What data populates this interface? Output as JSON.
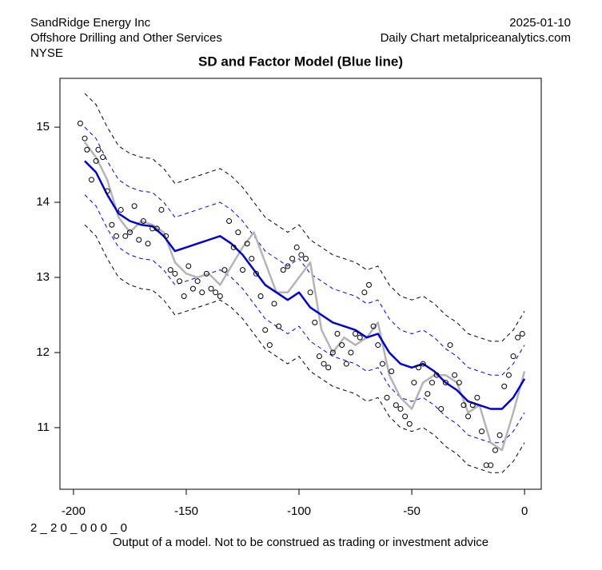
{
  "header": {
    "company": "SandRidge Energy Inc",
    "industry": "Offshore Drilling and Other Services",
    "exchange": "NYSE",
    "date": "2025-01-10",
    "source": "Daily Chart metalpriceanalytics.com"
  },
  "chart_data": {
    "type": "line",
    "title": "SD and Factor Model (Blue line)",
    "xlim": [
      -206,
      7.4
    ],
    "ylim": [
      10.18,
      15.65
    ],
    "xticks": [
      -200,
      -150,
      -100,
      -50,
      0
    ],
    "yticks": [
      11,
      12,
      13,
      14,
      15
    ],
    "series": [
      {
        "style": "dashed",
        "color": "#000000",
        "x": [
          -195,
          -190,
          -185,
          -180,
          -175,
          -170,
          -165,
          -160,
          -155,
          -150,
          -145,
          -140,
          -135,
          -130,
          -125,
          -120,
          -115,
          -110,
          -105,
          -100,
          -95,
          -90,
          -85,
          -80,
          -75,
          -70,
          -65,
          -60,
          -55,
          -50,
          -45,
          -40,
          -35,
          -30,
          -25,
          -20,
          -15,
          -10,
          -5,
          0
        ],
        "values": [
          15.45,
          15.3,
          15.0,
          14.75,
          14.65,
          14.6,
          14.58,
          14.45,
          14.25,
          14.3,
          14.35,
          14.4,
          14.45,
          14.35,
          14.2,
          14.0,
          13.8,
          13.7,
          13.6,
          13.7,
          13.5,
          13.4,
          13.3,
          13.25,
          13.2,
          13.1,
          13.15,
          12.9,
          12.75,
          12.7,
          12.75,
          12.65,
          12.5,
          12.4,
          12.25,
          12.2,
          12.15,
          12.15,
          12.3,
          12.55
        ]
      },
      {
        "style": "dashed",
        "color": "#000000",
        "x": [
          -195,
          -190,
          -185,
          -180,
          -175,
          -170,
          -165,
          -160,
          -155,
          -150,
          -145,
          -140,
          -135,
          -130,
          -125,
          -120,
          -115,
          -110,
          -105,
          -100,
          -95,
          -90,
          -85,
          -80,
          -75,
          -70,
          -65,
          -60,
          -55,
          -50,
          -45,
          -40,
          -35,
          -30,
          -25,
          -20,
          -15,
          -10,
          -5,
          0
        ],
        "values": [
          13.7,
          13.55,
          13.25,
          13.0,
          12.9,
          12.85,
          12.83,
          12.7,
          12.5,
          12.55,
          12.6,
          12.65,
          12.7,
          12.6,
          12.45,
          12.25,
          12.05,
          11.95,
          11.85,
          11.95,
          11.75,
          11.65,
          11.55,
          11.5,
          11.45,
          11.35,
          11.4,
          11.15,
          11.0,
          10.95,
          11.0,
          10.9,
          10.75,
          10.65,
          10.5,
          10.45,
          10.4,
          10.4,
          10.55,
          10.8
        ]
      },
      {
        "style": "dashed",
        "color": "#0000ff",
        "x": [
          -195,
          -190,
          -185,
          -180,
          -175,
          -170,
          -165,
          -160,
          -155,
          -150,
          -145,
          -140,
          -135,
          -130,
          -125,
          -120,
          -115,
          -110,
          -105,
          -100,
          -95,
          -90,
          -85,
          -80,
          -75,
          -70,
          -65,
          -60,
          -55,
          -50,
          -45,
          -40,
          -35,
          -30,
          -25,
          -20,
          -15,
          -10,
          -5,
          0
        ],
        "values": [
          15.0,
          14.85,
          14.55,
          14.3,
          14.2,
          14.15,
          14.13,
          14.0,
          13.8,
          13.85,
          13.9,
          13.95,
          14.0,
          13.9,
          13.75,
          13.55,
          13.35,
          13.25,
          13.15,
          13.25,
          13.05,
          12.95,
          12.85,
          12.8,
          12.75,
          12.65,
          12.7,
          12.45,
          12.3,
          12.25,
          12.3,
          12.2,
          12.05,
          11.95,
          11.8,
          11.75,
          11.7,
          11.7,
          11.85,
          12.1
        ]
      },
      {
        "style": "dashed",
        "color": "#0000ff",
        "x": [
          -195,
          -190,
          -185,
          -180,
          -175,
          -170,
          -165,
          -160,
          -155,
          -150,
          -145,
          -140,
          -135,
          -130,
          -125,
          -120,
          -115,
          -110,
          -105,
          -100,
          -95,
          -90,
          -85,
          -80,
          -75,
          -70,
          -65,
          -60,
          -55,
          -50,
          -45,
          -40,
          -35,
          -30,
          -25,
          -20,
          -15,
          -10,
          -5,
          0
        ],
        "values": [
          14.1,
          13.95,
          13.65,
          13.4,
          13.3,
          13.25,
          13.23,
          13.1,
          12.9,
          12.95,
          13.0,
          13.05,
          13.1,
          13.0,
          12.85,
          12.65,
          12.45,
          12.35,
          12.25,
          12.35,
          12.15,
          12.05,
          11.95,
          11.9,
          11.85,
          11.75,
          11.8,
          11.55,
          11.4,
          11.35,
          11.4,
          11.3,
          11.15,
          11.05,
          10.9,
          10.85,
          10.8,
          10.8,
          10.95,
          11.2
        ]
      },
      {
        "style": "line",
        "color": "#b4b4b4",
        "x": [
          -195,
          -190,
          -185,
          -180,
          -175,
          -170,
          -165,
          -160,
          -155,
          -150,
          -145,
          -140,
          -135,
          -130,
          -125,
          -120,
          -115,
          -110,
          -105,
          -100,
          -95,
          -90,
          -85,
          -80,
          -75,
          -70,
          -65,
          -60,
          -55,
          -50,
          -45,
          -40,
          -35,
          -30,
          -25,
          -20,
          -15,
          -10,
          -5,
          0
        ],
        "values": [
          14.8,
          14.6,
          14.3,
          13.8,
          13.6,
          13.75,
          13.7,
          13.6,
          13.2,
          13.05,
          13.0,
          13.05,
          12.9,
          13.15,
          13.4,
          13.6,
          13.2,
          12.8,
          12.8,
          13.0,
          13.2,
          12.3,
          12.0,
          12.2,
          12.1,
          12.2,
          12.4,
          11.7,
          11.4,
          11.25,
          11.6,
          11.7,
          11.7,
          11.6,
          11.2,
          11.3,
          10.8,
          10.7,
          11.2,
          11.75
        ]
      },
      {
        "style": "line",
        "color": "#0000cd",
        "x": [
          -195,
          -190,
          -185,
          -180,
          -175,
          -170,
          -165,
          -160,
          -155,
          -150,
          -145,
          -140,
          -135,
          -130,
          -125,
          -120,
          -115,
          -110,
          -105,
          -100,
          -95,
          -90,
          -85,
          -80,
          -75,
          -70,
          -65,
          -60,
          -55,
          -50,
          -45,
          -40,
          -35,
          -30,
          -25,
          -20,
          -15,
          -10,
          -5,
          0
        ],
        "values": [
          14.55,
          14.4,
          14.1,
          13.85,
          13.75,
          13.7,
          13.68,
          13.55,
          13.35,
          13.4,
          13.45,
          13.5,
          13.55,
          13.45,
          13.3,
          13.1,
          12.9,
          12.8,
          12.7,
          12.8,
          12.6,
          12.5,
          12.4,
          12.35,
          12.3,
          12.2,
          12.25,
          12.0,
          11.85,
          11.8,
          11.85,
          11.75,
          11.6,
          11.5,
          11.35,
          11.3,
          11.25,
          11.25,
          11.4,
          11.65
        ]
      },
      {
        "style": "points",
        "color": "#000000",
        "x": [
          -197,
          -195,
          -194,
          -192,
          -190,
          -189,
          -187,
          -185,
          -183,
          -181,
          -179,
          -177,
          -175,
          -173,
          -171,
          -169,
          -167,
          -165,
          -163,
          -161,
          -159,
          -157,
          -155,
          -153,
          -151,
          -149,
          -147,
          -145,
          -143,
          -141,
          -139,
          -137,
          -135,
          -133,
          -131,
          -129,
          -127,
          -125,
          -123,
          -121,
          -119,
          -117,
          -115,
          -113,
          -111,
          -109,
          -107,
          -105,
          -103,
          -101,
          -99,
          -97,
          -95,
          -93,
          -91,
          -89,
          -87,
          -85,
          -83,
          -81,
          -79,
          -77,
          -75,
          -73,
          -71,
          -69,
          -67,
          -65,
          -63,
          -61,
          -59,
          -57,
          -55,
          -53,
          -51,
          -49,
          -47,
          -45,
          -43,
          -41,
          -39,
          -37,
          -35,
          -33,
          -31,
          -29,
          -27,
          -25,
          -23,
          -21,
          -19,
          -17,
          -15,
          -13,
          -11,
          -9,
          -7,
          -5,
          -3,
          -1
        ],
        "values": [
          15.05,
          14.85,
          14.7,
          14.3,
          14.55,
          14.7,
          14.6,
          14.15,
          13.7,
          13.55,
          13.9,
          13.55,
          13.6,
          13.95,
          13.5,
          13.75,
          13.45,
          13.65,
          13.65,
          13.9,
          13.55,
          13.1,
          13.05,
          12.95,
          12.75,
          13.15,
          12.85,
          12.95,
          12.8,
          13.05,
          12.85,
          12.8,
          12.75,
          13.1,
          13.75,
          13.4,
          13.6,
          13.1,
          13.45,
          13.25,
          13.05,
          12.75,
          12.3,
          12.1,
          12.65,
          12.35,
          13.1,
          13.15,
          13.25,
          13.4,
          13.3,
          13.25,
          12.8,
          12.4,
          11.95,
          11.85,
          11.8,
          12.0,
          12.25,
          12.1,
          11.85,
          12.0,
          12.25,
          12.2,
          12.8,
          12.9,
          12.35,
          12.1,
          11.85,
          11.4,
          11.75,
          11.3,
          11.25,
          11.15,
          11.05,
          11.6,
          11.8,
          11.85,
          11.45,
          11.6,
          11.7,
          11.25,
          11.6,
          12.1,
          11.7,
          11.6,
          11.3,
          11.15,
          11.3,
          11.4,
          10.95,
          10.5,
          10.5,
          10.7,
          10.9,
          11.55,
          11.7,
          11.95,
          12.2,
          12.25
        ]
      }
    ]
  },
  "footer": {
    "code": "2 _ 2 0 _ 0 0 0 _ 0",
    "note": "Output of a model. Not to be construed as trading or investment advice"
  }
}
